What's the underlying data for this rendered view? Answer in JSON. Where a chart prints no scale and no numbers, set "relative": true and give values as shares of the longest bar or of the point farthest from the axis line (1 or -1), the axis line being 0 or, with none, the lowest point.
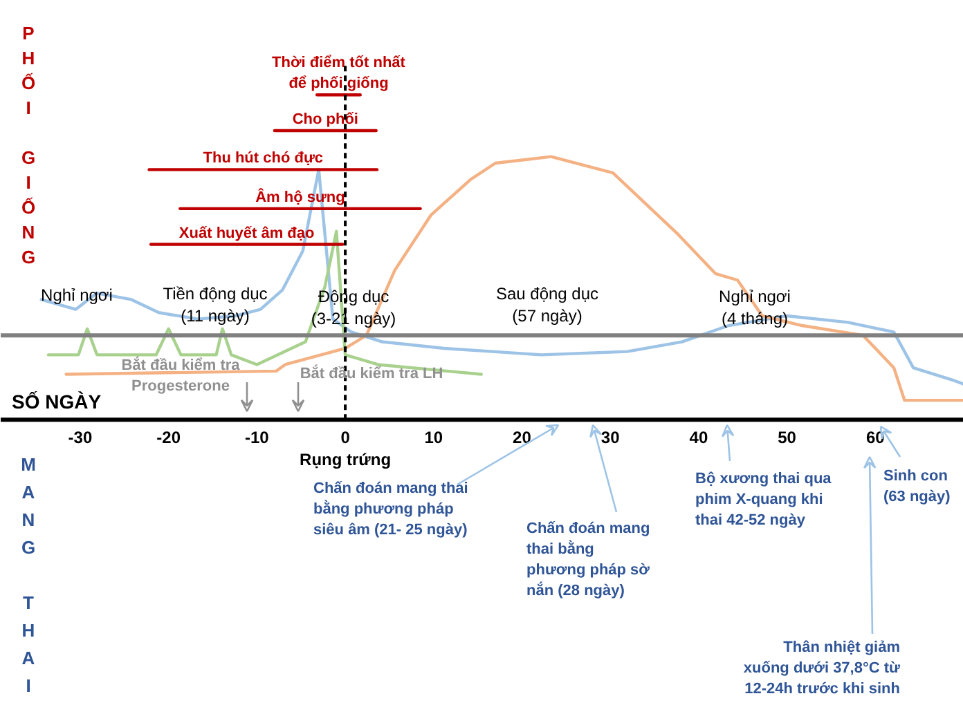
{
  "chart_data": {
    "type": "line",
    "relative": true,
    "xlabel": "SỐ NGÀY",
    "xlim": [
      -39,
      70
    ],
    "xticks": [
      -30,
      -20,
      -10,
      0,
      10,
      20,
      30,
      40,
      50,
      60
    ],
    "grid": false,
    "series": [
      {
        "color": "#9dc3e6",
        "x": [
          -34.4,
          -30.5,
          -28.1,
          -24.2,
          -21.1,
          -16.7,
          -12.4,
          -9.6,
          -7.1,
          -4.8,
          -3.0,
          -2.3,
          -1.4,
          0.7,
          4.2,
          11.2,
          22.2,
          31.9,
          38.1,
          43.4,
          50,
          56.9,
          62.1,
          64.3,
          69,
          70
        ],
        "values": [
          0.37,
          0.34,
          0.39,
          0.37,
          0.33,
          0.31,
          0.32,
          0.34,
          0.4,
          0.52,
          0.77,
          0.57,
          0.31,
          0.27,
          0.24,
          0.22,
          0.2,
          0.21,
          0.24,
          0.29,
          0.32,
          0.3,
          0.27,
          0.16,
          0.12,
          0.11
        ]
      },
      {
        "color": "#f4b183",
        "x": [
          -31.6,
          -7.8,
          -6.8,
          0,
          2.4,
          5.6,
          9.7,
          14.2,
          17,
          23.3,
          30.3,
          37.7,
          41.9,
          44.4,
          47.2,
          51.7,
          58.6,
          62.1,
          63.3,
          70
        ],
        "values": [
          0.14,
          0.15,
          0.17,
          0.22,
          0.26,
          0.46,
          0.63,
          0.74,
          0.79,
          0.81,
          0.76,
          0.57,
          0.45,
          0.43,
          0.32,
          0.29,
          0.26,
          0.16,
          0.06,
          0.06
        ]
      },
      {
        "color": "#a9d18e",
        "x": [
          -33.6,
          -30.2,
          -29.2,
          -28.1,
          -21.4,
          -20,
          -18.6,
          -14.6,
          -13.9,
          -12.9,
          -10,
          -4.5,
          -2.3,
          -1.0,
          0,
          3.7,
          11.5,
          15.4
        ],
        "values": [
          0.2,
          0.2,
          0.28,
          0.2,
          0.2,
          0.28,
          0.2,
          0.2,
          0.28,
          0.2,
          0.17,
          0.24,
          0.41,
          0.58,
          0.2,
          0.17,
          0.15,
          0.14
        ]
      },
      {
        "name": "Thời điểm tốt nhất\nđể phối giống",
        "color": "#c00000",
        "x": [
          -3.2,
          1.7
        ],
        "values": [
          1.0,
          1.0
        ]
      },
      {
        "name": "Cho phối",
        "color": "#c00000",
        "x": [
          -8,
          3.5
        ],
        "values": [
          0.89,
          0.89
        ]
      },
      {
        "name": "Thu hút chó đực",
        "color": "#c00000",
        "x": [
          -22.2,
          3.6
        ],
        "values": [
          0.77,
          0.77
        ]
      },
      {
        "name": "Âm hộ sưng",
        "color": "#c00000",
        "x": [
          -18.7,
          8.5
        ],
        "values": [
          0.65,
          0.65
        ]
      },
      {
        "name": "Xuất huyết âm đạo",
        "color": "#c00000",
        "x": [
          -22,
          -0.3
        ],
        "values": [
          0.54,
          0.54
        ]
      }
    ],
    "ref_lines": [
      {
        "axis": "x",
        "value": 0,
        "label": "Rụng trứng",
        "color": "#000000",
        "line_style": "dashed"
      },
      {
        "axis": "y",
        "value": 0.26,
        "label": null,
        "color": "#808080",
        "line_style": "solid"
      }
    ],
    "annotations": [
      "PHỐI GIỐNG",
      "MANG THAI",
      "Nghỉ ngơi",
      "Tiền động dục\n(11 ngày)",
      "Động dục\n(3-21 ngày)",
      "Sau động dục\n(57 ngày)",
      "Nghỉ ngơi\n(4 tháng)",
      "Bắt đầu kiểm tra\nProgesterone",
      "Bắt đầu kiểm tra LH",
      "Chấn đoán mang thai\nbằng phương pháp\nsiêu âm (21- 25 ngày)",
      "Chấn đoán mang\nthai bằng\nphương pháp sờ\nnắn (28 ngày)",
      "Bộ xương thai qua\nphim X-quang khi\nthai 42-52 ngày",
      "Sinh con\n(63 ngày)",
      "Thân nhiệt giảm\nxuống dưới 37,8°C từ\n12-24h trước khi sinh"
    ]
  }
}
